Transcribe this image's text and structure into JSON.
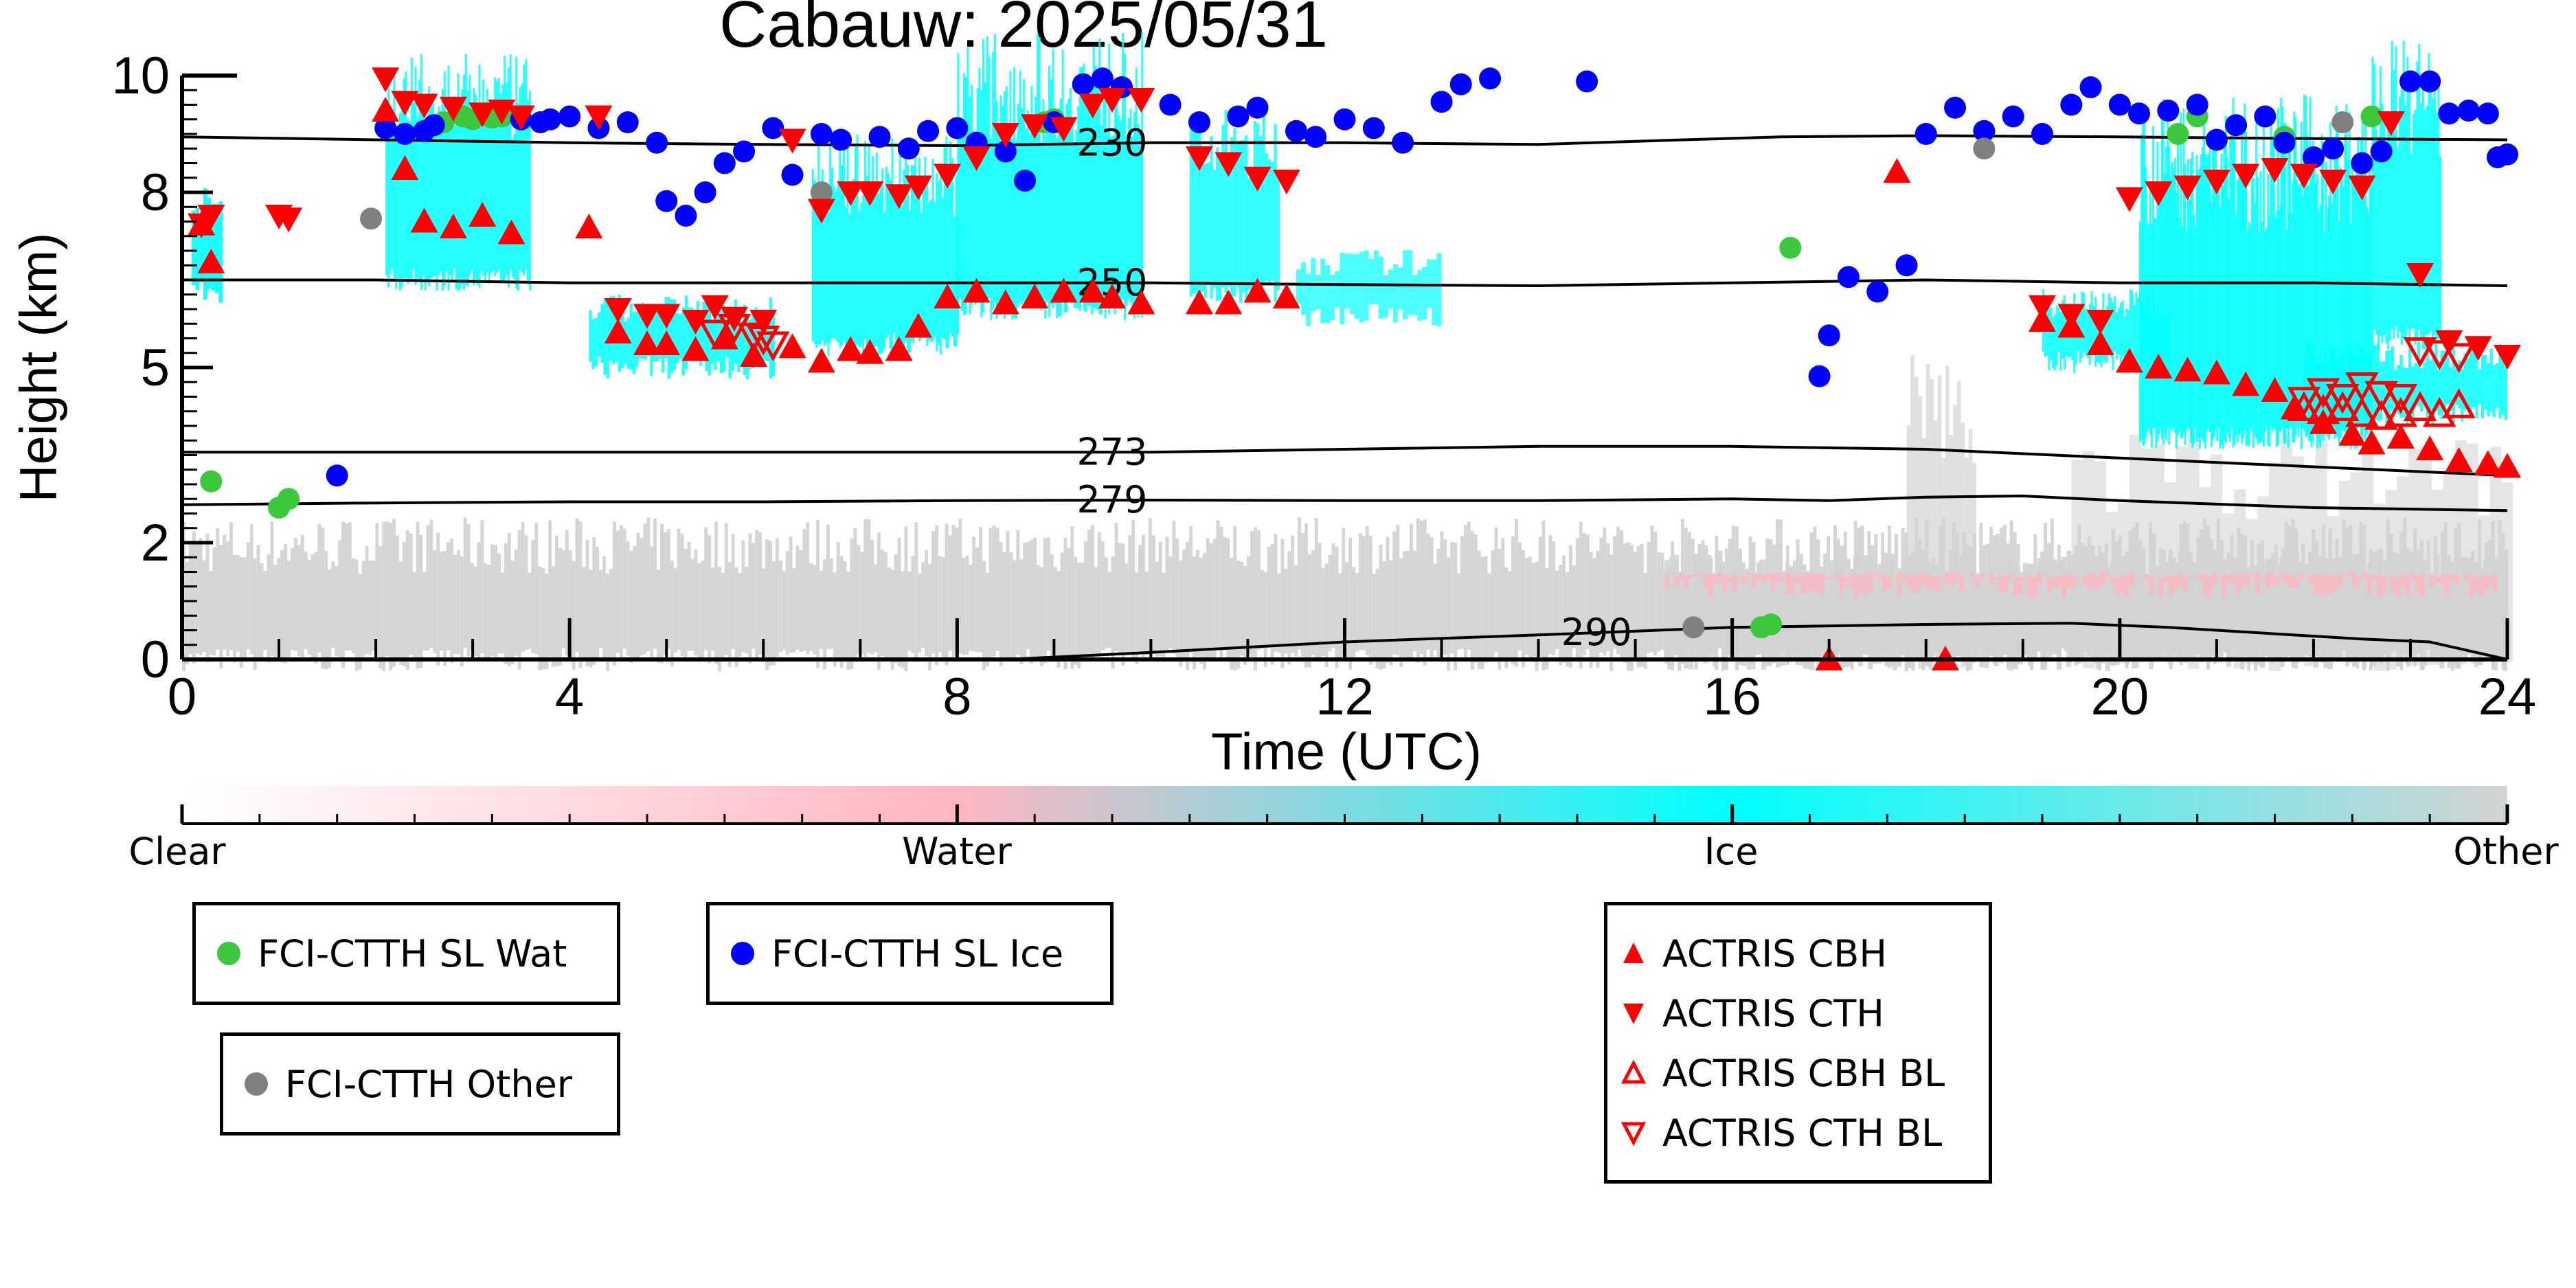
{
  "chart_data": {
    "type": "scatter",
    "title": "Cabauw: 2025/05/31",
    "xlabel": "Time (UTC)",
    "ylabel": "Height (km)",
    "xlim": [
      0,
      24
    ],
    "ylim": [
      0,
      10
    ],
    "xticks": [
      "0",
      "4",
      "8",
      "12",
      "16",
      "20",
      "24"
    ],
    "xtick_values": [
      0,
      4,
      8,
      12,
      16,
      20,
      24
    ],
    "yticks": [
      "0",
      "2",
      "5",
      "8",
      "10"
    ],
    "ytick_values": [
      0,
      2,
      5,
      8,
      10
    ],
    "grid": false,
    "colorbar": {
      "labels": [
        "Clear",
        "Water",
        "Ice",
        "Other"
      ],
      "colors": [
        "#ffffff",
        "#ffb6c1",
        "#00ffff",
        "#d3d3d3"
      ]
    },
    "isotherms": [
      {
        "label": "230",
        "x": [
          0,
          2,
          4,
          6,
          8,
          10,
          12,
          14,
          15.5,
          16.5,
          18,
          20,
          22,
          24
        ],
        "y": [
          8.95,
          8.9,
          8.85,
          8.82,
          8.8,
          8.85,
          8.85,
          8.82,
          8.9,
          8.95,
          8.97,
          8.95,
          8.92,
          8.9
        ]
      },
      {
        "label": "250",
        "x": [
          0,
          2,
          4,
          6,
          8,
          10,
          12,
          14,
          16,
          18,
          20,
          22,
          24
        ],
        "y": [
          6.5,
          6.5,
          6.45,
          6.45,
          6.45,
          6.45,
          6.42,
          6.4,
          6.45,
          6.5,
          6.45,
          6.45,
          6.4
        ]
      },
      {
        "label": "273",
        "x": [
          0,
          2,
          4,
          6,
          8,
          10,
          12,
          14,
          16,
          18,
          20,
          22,
          24
        ],
        "y": [
          3.55,
          3.55,
          3.55,
          3.55,
          3.55,
          3.55,
          3.6,
          3.65,
          3.65,
          3.6,
          3.45,
          3.3,
          3.15
        ]
      },
      {
        "label": "279",
        "x": [
          0,
          2,
          4,
          6,
          8,
          10,
          12,
          14,
          16,
          17,
          18,
          19,
          20,
          22,
          24
        ],
        "y": [
          2.65,
          2.68,
          2.7,
          2.7,
          2.72,
          2.73,
          2.72,
          2.72,
          2.75,
          2.72,
          2.78,
          2.8,
          2.72,
          2.6,
          2.55
        ]
      },
      {
        "label": "290",
        "x": [
          8.5,
          10,
          12,
          14,
          16,
          18,
          19.5,
          20.5,
          21.5,
          22.5,
          23.2,
          24
        ],
        "y": [
          0,
          0.12,
          0.3,
          0.42,
          0.55,
          0.6,
          0.62,
          0.55,
          0.45,
          0.35,
          0.3,
          0
        ]
      }
    ],
    "series": [
      {
        "name": "FCI-CTTH SL Wat",
        "color": "#3cc83c",
        "marker": "circle",
        "x": [
          0.3,
          1.0,
          1.1,
          2.7,
          2.9,
          3.0,
          3.2,
          3.3,
          8.9,
          9.0,
          16.3,
          16.4,
          16.6,
          20.6,
          20.8,
          21.7,
          22.6
        ],
        "y": [
          3.05,
          2.6,
          2.75,
          9.2,
          9.3,
          9.25,
          9.28,
          9.3,
          9.2,
          9.25,
          0.55,
          0.6,
          7.05,
          9.0,
          9.3,
          8.95,
          9.3
        ]
      },
      {
        "name": "FCI-CTTH SL Ice",
        "color": "#0000ff",
        "marker": "circle",
        "x": [
          1.6,
          2.1,
          2.3,
          2.5,
          2.6,
          3.5,
          3.7,
          3.8,
          4.0,
          4.3,
          4.6,
          4.9,
          5.0,
          5.2,
          5.4,
          5.6,
          5.8,
          6.1,
          6.3,
          6.6,
          6.8,
          7.2,
          7.5,
          7.7,
          8.0,
          8.2,
          8.5,
          8.7,
          9.0,
          9.3,
          9.5,
          9.7,
          10.2,
          10.5,
          10.9,
          11.1,
          11.5,
          11.7,
          12.0,
          12.3,
          12.6,
          13.0,
          13.2,
          13.5,
          14.5,
          16.9,
          17.0,
          17.2,
          17.5,
          17.8,
          18.0,
          18.3,
          18.6,
          18.9,
          19.2,
          19.5,
          19.7,
          20.0,
          20.2,
          20.5,
          20.8,
          21.0,
          21.2,
          21.5,
          21.7,
          22.0,
          22.2,
          22.5,
          22.7,
          23.0,
          23.2,
          23.4,
          23.6,
          23.8,
          23.9,
          24.0
        ],
        "y": [
          3.15,
          9.1,
          9.0,
          9.05,
          9.15,
          9.25,
          9.2,
          9.25,
          9.3,
          9.1,
          9.2,
          8.85,
          7.85,
          7.6,
          8.0,
          8.5,
          8.7,
          9.1,
          8.3,
          9.0,
          8.9,
          8.95,
          8.75,
          9.05,
          9.1,
          8.85,
          8.7,
          8.2,
          9.2,
          9.85,
          9.95,
          9.8,
          9.5,
          9.2,
          9.3,
          9.45,
          9.05,
          8.95,
          9.25,
          9.1,
          8.85,
          9.55,
          9.85,
          9.95,
          9.9,
          4.85,
          5.55,
          6.55,
          6.3,
          6.75,
          9.0,
          9.45,
          9.05,
          9.3,
          9.0,
          9.5,
          9.8,
          9.5,
          9.35,
          9.4,
          9.5,
          8.9,
          9.15,
          9.3,
          8.85,
          8.6,
          8.75,
          8.5,
          8.7,
          9.9,
          9.9,
          9.35,
          9.4,
          9.35,
          8.6,
          8.65
        ]
      },
      {
        "name": "FCI-CTTH Other",
        "color": "#808080",
        "marker": "circle",
        "x": [
          1.95,
          6.6,
          15.6,
          18.6,
          22.3
        ],
        "y": [
          7.55,
          8.0,
          0.55,
          8.75,
          9.2
        ]
      },
      {
        "name": "ACTRIS CBH",
        "color": "#ff0000",
        "marker": "triangle-up-filled",
        "x": [
          0.2,
          0.3,
          2.1,
          2.3,
          2.5,
          2.8,
          3.1,
          3.4,
          4.2,
          4.5,
          4.8,
          5.0,
          5.3,
          5.6,
          5.9,
          6.3,
          6.6,
          6.9,
          7.1,
          7.4,
          7.6,
          7.9,
          8.2,
          8.5,
          8.8,
          9.1,
          9.4,
          9.6,
          9.9,
          10.5,
          10.8,
          11.1,
          11.4,
          17.0,
          17.7,
          18.2,
          19.2,
          19.5,
          19.8,
          20.1,
          20.4,
          20.7,
          21.0,
          21.3,
          21.6,
          21.8,
          22.1,
          22.4,
          22.6,
          22.9,
          23.2,
          23.5,
          23.8,
          24.0
        ],
        "y": [
          7.45,
          6.8,
          9.4,
          8.4,
          7.5,
          7.4,
          7.6,
          7.3,
          7.4,
          5.6,
          5.4,
          5.4,
          5.3,
          5.5,
          5.2,
          5.35,
          5.1,
          5.3,
          5.25,
          5.3,
          5.7,
          6.2,
          6.3,
          6.1,
          6.2,
          6.3,
          6.3,
          6.2,
          6.1,
          6.1,
          6.1,
          6.3,
          6.2,
          0,
          8.35,
          0,
          5.8,
          5.7,
          5.4,
          5.1,
          5.0,
          4.95,
          4.9,
          4.7,
          4.6,
          4.3,
          4.05,
          3.85,
          3.7,
          3.8,
          3.6,
          3.4,
          3.35,
          3.3
        ]
      },
      {
        "name": "ACTRIS CTH",
        "color": "#ff0000",
        "marker": "triangle-down-filled",
        "x": [
          0.2,
          0.3,
          1.0,
          1.1,
          2.1,
          2.3,
          2.5,
          2.8,
          3.1,
          3.3,
          3.5,
          4.3,
          4.5,
          4.8,
          5.0,
          5.3,
          5.5,
          5.7,
          6.0,
          6.3,
          6.6,
          6.9,
          7.1,
          7.4,
          7.6,
          7.9,
          8.2,
          8.5,
          8.8,
          9.1,
          9.4,
          9.6,
          9.9,
          10.5,
          10.8,
          11.1,
          11.4,
          19.2,
          19.5,
          19.8,
          20.1,
          20.4,
          20.7,
          21.0,
          21.3,
          21.6,
          21.9,
          22.2,
          22.5,
          22.8,
          23.1,
          23.4,
          23.7,
          24.0
        ],
        "y": [
          7.45,
          7.6,
          7.6,
          7.55,
          9.95,
          9.55,
          9.5,
          9.45,
          9.35,
          9.4,
          9.3,
          9.3,
          6.0,
          5.9,
          5.9,
          5.8,
          6.05,
          5.85,
          5.8,
          8.9,
          7.7,
          8.0,
          8.0,
          7.95,
          8.1,
          8.3,
          8.6,
          9.0,
          9.15,
          9.1,
          9.5,
          9.6,
          9.6,
          8.6,
          8.5,
          8.25,
          8.2,
          6.05,
          5.9,
          5.8,
          7.9,
          8.0,
          8.1,
          8.2,
          8.3,
          8.4,
          8.3,
          8.2,
          8.1,
          9.2,
          6.6,
          5.45,
          5.35,
          5.2
        ]
      },
      {
        "name": "ACTRIS CBH BL",
        "color": "#ff0000",
        "marker": "triangle-up-open",
        "x": [
          21.9,
          22.1,
          22.3,
          22.5,
          22.7,
          22.9,
          23.1,
          23.3,
          23.5
        ],
        "y": [
          4.3,
          4.25,
          4.3,
          4.2,
          4.15,
          4.2,
          4.3,
          4.2,
          4.35
        ]
      },
      {
        "name": "ACTRIS CTH BL",
        "color": "#ff0000",
        "marker": "triangle-down-open",
        "x": [
          5.5,
          5.7,
          5.9,
          6.0,
          6.1,
          21.9,
          22.1,
          22.3,
          22.5,
          22.7,
          22.9,
          23.1,
          23.3,
          23.5
        ],
        "y": [
          5.6,
          5.7,
          5.55,
          5.5,
          5.4,
          4.45,
          4.6,
          4.5,
          4.7,
          4.55,
          4.5,
          5.3,
          5.25,
          5.2
        ]
      }
    ]
  }
}
